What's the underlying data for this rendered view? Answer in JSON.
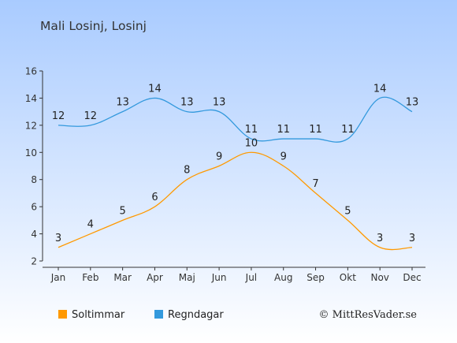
{
  "chart_data": {
    "type": "line",
    "title": "Mali Losinj, Losinj",
    "categories": [
      "Jan",
      "Feb",
      "Mar",
      "Apr",
      "Maj",
      "Jun",
      "Jul",
      "Aug",
      "Sep",
      "Okt",
      "Nov",
      "Dec"
    ],
    "series": [
      {
        "name": "Soltimmar",
        "values": [
          3,
          4,
          5,
          6,
          8,
          9,
          10,
          9,
          7,
          5,
          3,
          3
        ],
        "color": "#FF9900"
      },
      {
        "name": "Regndagar",
        "values": [
          12,
          12,
          13,
          14,
          13,
          13,
          11,
          11,
          11,
          11,
          14,
          13
        ],
        "color": "#3399DD"
      }
    ],
    "y_ticks": [
      "2",
      "4",
      "6",
      "8",
      "10",
      "12",
      "14",
      "16"
    ],
    "ylim": [
      2,
      16
    ],
    "legend_position": "bottom-left",
    "credit": "© MittResVader.se",
    "background_gradient": [
      "#A9CBFF",
      "#FFFFFF"
    ]
  }
}
